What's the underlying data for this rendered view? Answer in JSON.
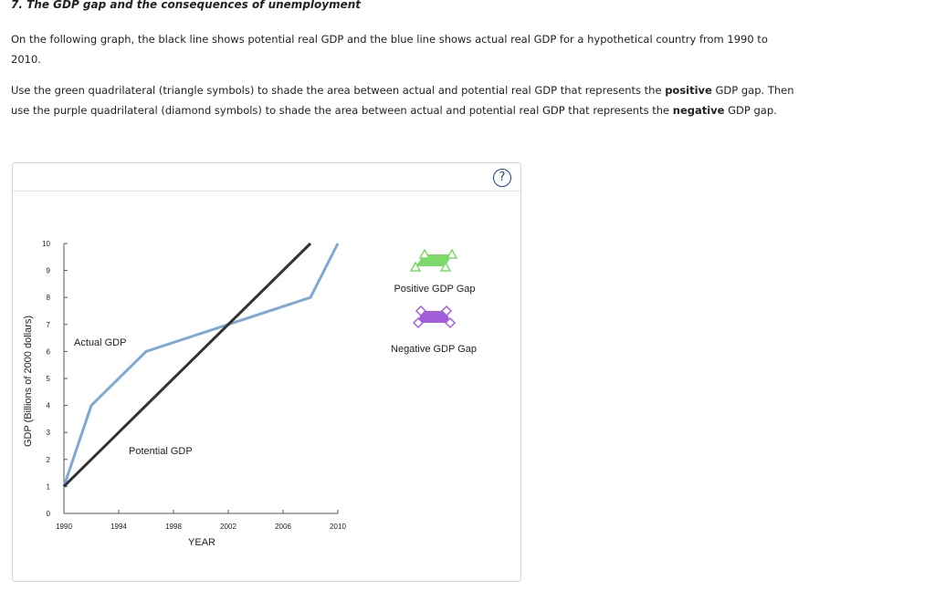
{
  "question": {
    "title": "7. The GDP gap and the consequences of unemployment",
    "para1": "On the following graph, the black line shows potential real GDP and the blue line shows actual real GDP for a hypothetical country from 1990 to 2010.",
    "para2_a": "Use the green quadrilateral (triangle symbols) to shade the area between actual and potential real GDP that represents the ",
    "para2_b": "positive",
    "para2_c": " GDP gap. Then use the purple quadrilateral (diamond symbols) to shade the area between actual and potential real GDP that represents the ",
    "para2_d": "negative",
    "para2_e": " GDP gap."
  },
  "help": {
    "label": "?"
  },
  "tools": {
    "positive_label": "Positive GDP Gap",
    "negative_label": "Negative GDP Gap"
  },
  "colors": {
    "actual": "#7fa8d4",
    "potential": "#333333",
    "positive": "#7cd96a",
    "negative": "#a35fd9"
  },
  "chart_data": {
    "type": "line",
    "xlabel": "YEAR",
    "ylabel": "GDP (Billions of 2000 dollars)",
    "xlim": [
      1990,
      2010
    ],
    "ylim": [
      0,
      10
    ],
    "x_ticks": [
      "1990",
      "1994",
      "1998",
      "2002",
      "2006",
      "2010"
    ],
    "y_ticks": [
      "0",
      "1",
      "2",
      "3",
      "4",
      "5",
      "6",
      "7",
      "8",
      "9",
      "10"
    ],
    "series": [
      {
        "name": "Actual GDP",
        "x": [
          1990,
          1992,
          1996,
          2008,
          2010
        ],
        "y": [
          1,
          4,
          6,
          8,
          10
        ]
      },
      {
        "name": "Potential GDP",
        "x": [
          1990,
          2008
        ],
        "y": [
          1,
          10
        ]
      }
    ]
  }
}
